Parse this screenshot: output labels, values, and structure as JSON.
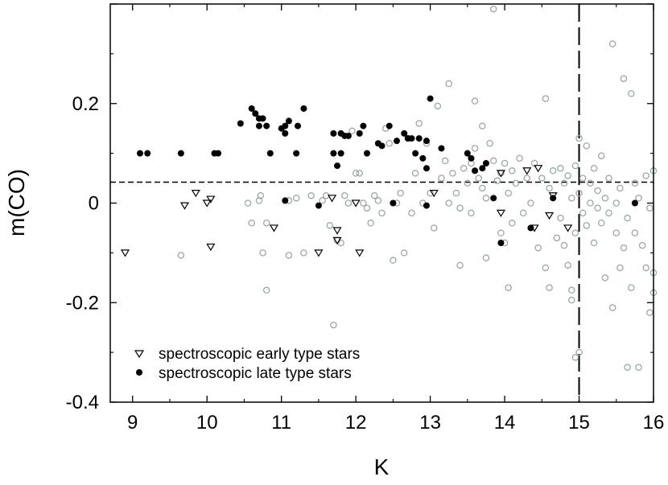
{
  "chart_data": {
    "type": "scatter",
    "xlabel": "K",
    "ylabel": "m(CO)",
    "xlim": [
      8.7,
      16.0
    ],
    "ylim": [
      -0.4,
      0.4
    ],
    "xticks": [
      "9",
      "10",
      "11",
      "12",
      "13",
      "14",
      "15",
      "16"
    ],
    "yticks": [
      "0.2",
      "0",
      "-0.2",
      "-0.4"
    ],
    "grid": false,
    "legend_position": "bottom-left",
    "reference_lines": [
      {
        "orientation": "horizontal",
        "style": "short-dash",
        "value": 0.042
      },
      {
        "orientation": "vertical",
        "style": "long-dash",
        "value": 15.0
      }
    ],
    "series": [
      {
        "name": "spectroscopic early type stars",
        "marker": "open-triangle-down",
        "color": "#000000",
        "points": [
          [
            8.9,
            -0.1
          ],
          [
            9.7,
            -0.005
          ],
          [
            9.85,
            0.02
          ],
          [
            10.0,
            0.0
          ],
          [
            10.05,
            0.008
          ],
          [
            10.05,
            -0.088
          ],
          [
            10.9,
            -0.05
          ],
          [
            11.5,
            -0.1
          ],
          [
            11.68,
            0.01
          ],
          [
            11.75,
            -0.055
          ],
          [
            11.75,
            -0.075
          ],
          [
            12.0,
            0.0
          ],
          [
            12.05,
            -0.1
          ],
          [
            13.05,
            0.02
          ],
          [
            13.95,
            0.06
          ],
          [
            13.95,
            -0.02
          ],
          [
            14.3,
            0.065
          ],
          [
            14.4,
            -0.05
          ],
          [
            14.45,
            0.07
          ],
          [
            14.6,
            -0.025
          ],
          [
            14.65,
            0.015
          ],
          [
            14.85,
            -0.05
          ]
        ]
      },
      {
        "name": "spectroscopic late type stars",
        "marker": "filled-circle",
        "color": "#000000",
        "points": [
          [
            9.1,
            0.1
          ],
          [
            9.2,
            0.1
          ],
          [
            9.65,
            0.1
          ],
          [
            10.1,
            0.1
          ],
          [
            10.15,
            0.1
          ],
          [
            10.45,
            0.16
          ],
          [
            10.6,
            0.19
          ],
          [
            10.65,
            0.18
          ],
          [
            10.7,
            0.155
          ],
          [
            10.7,
            0.17
          ],
          [
            10.75,
            0.17
          ],
          [
            10.8,
            0.155
          ],
          [
            10.85,
            0.1
          ],
          [
            11.0,
            0.15
          ],
          [
            11.05,
            0.14
          ],
          [
            11.05,
            0.155
          ],
          [
            11.1,
            0.165
          ],
          [
            11.2,
            0.1
          ],
          [
            11.22,
            0.155
          ],
          [
            11.3,
            0.19
          ],
          [
            11.05,
            0.005
          ],
          [
            11.5,
            -0.005
          ],
          [
            11.7,
            0.14
          ],
          [
            11.7,
            0.1
          ],
          [
            11.75,
            0.075
          ],
          [
            11.8,
            0.1
          ],
          [
            11.8,
            0.14
          ],
          [
            11.85,
            0.135
          ],
          [
            11.9,
            0.135
          ],
          [
            12.05,
            0.14
          ],
          [
            12.1,
            0.155
          ],
          [
            12.15,
            0.1
          ],
          [
            12.3,
            0.12
          ],
          [
            12.35,
            0.115
          ],
          [
            12.45,
            0.155
          ],
          [
            12.5,
            0.0
          ],
          [
            12.55,
            0.125
          ],
          [
            12.65,
            0.14
          ],
          [
            12.7,
            0.13
          ],
          [
            12.75,
            0.13
          ],
          [
            12.8,
            0.1
          ],
          [
            12.85,
            0.13
          ],
          [
            12.9,
            0.09
          ],
          [
            12.95,
            0.125
          ],
          [
            13.0,
            0.21
          ],
          [
            12.95,
            0.07
          ],
          [
            12.95,
            -0.005
          ],
          [
            13.15,
            0.11
          ],
          [
            13.5,
            0.1
          ],
          [
            13.55,
            0.09
          ],
          [
            13.6,
            0.065
          ],
          [
            13.7,
            0.07
          ],
          [
            13.75,
            0.08
          ],
          [
            13.85,
            0.01
          ],
          [
            13.95,
            -0.08
          ],
          [
            14.35,
            -0.05
          ],
          [
            14.65,
            0.01
          ],
          [
            15.75,
            0.0
          ]
        ]
      },
      {
        "name": "",
        "marker": "open-circle",
        "color": "#9aa8a6",
        "points": [
          [
            9.65,
            -0.105
          ],
          [
            10.55,
            0.0
          ],
          [
            10.6,
            -0.04
          ],
          [
            10.7,
            0.005
          ],
          [
            10.72,
            0.015
          ],
          [
            10.75,
            -0.1
          ],
          [
            10.8,
            -0.04
          ],
          [
            10.8,
            -0.175
          ],
          [
            11.1,
            0.005
          ],
          [
            11.1,
            -0.105
          ],
          [
            11.2,
            0.01
          ],
          [
            11.3,
            -0.1
          ],
          [
            11.4,
            0.015
          ],
          [
            11.55,
            0.005
          ],
          [
            11.6,
            0.015
          ],
          [
            11.65,
            -0.045
          ],
          [
            11.7,
            -0.245
          ],
          [
            11.75,
            -0.075
          ],
          [
            11.8,
            -0.08
          ],
          [
            11.85,
            0.015
          ],
          [
            11.9,
            0.0
          ],
          [
            11.95,
            0.145
          ],
          [
            12.0,
            0.06
          ],
          [
            12.05,
            0.06
          ],
          [
            12.1,
            0.0
          ],
          [
            12.15,
            -0.01
          ],
          [
            12.2,
            -0.04
          ],
          [
            12.25,
            0.015
          ],
          [
            12.3,
            0.005
          ],
          [
            12.35,
            -0.02
          ],
          [
            12.4,
            0.15
          ],
          [
            12.45,
            0.12
          ],
          [
            12.5,
            -0.115
          ],
          [
            12.55,
            0.0
          ],
          [
            12.6,
            0.02
          ],
          [
            12.65,
            -0.1
          ],
          [
            12.7,
            0.13
          ],
          [
            12.75,
            -0.02
          ],
          [
            12.8,
            0.06
          ],
          [
            12.85,
            0.16
          ],
          [
            12.9,
            0.0
          ],
          [
            12.95,
            0.12
          ],
          [
            13.0,
            0.02
          ],
          [
            13.05,
            -0.05
          ],
          [
            13.1,
            0.195
          ],
          [
            13.15,
            0.05
          ],
          [
            13.2,
            0.085
          ],
          [
            13.25,
            0.0
          ],
          [
            13.25,
            0.24
          ],
          [
            13.3,
            0.06
          ],
          [
            13.35,
            0.02
          ],
          [
            13.4,
            -0.01
          ],
          [
            13.4,
            -0.125
          ],
          [
            13.45,
            0.07
          ],
          [
            13.5,
            0.04
          ],
          [
            13.55,
            -0.02
          ],
          [
            13.55,
            0.08
          ],
          [
            13.6,
            0.205
          ],
          [
            13.6,
            0.11
          ],
          [
            13.65,
            0.05
          ],
          [
            13.7,
            0.155
          ],
          [
            13.7,
            0.03
          ],
          [
            13.75,
            0.01
          ],
          [
            13.75,
            -0.11
          ],
          [
            13.8,
            0.12
          ],
          [
            13.85,
            0.085
          ],
          [
            13.85,
            0.39
          ],
          [
            13.9,
            0.045
          ],
          [
            13.95,
            0.06
          ],
          [
            13.95,
            -0.06
          ],
          [
            14.0,
            0.08
          ],
          [
            14.0,
            -0.08
          ],
          [
            14.05,
            0.02
          ],
          [
            14.05,
            -0.17
          ],
          [
            14.1,
            0.065
          ],
          [
            14.1,
            -0.04
          ],
          [
            14.15,
            0.04
          ],
          [
            14.2,
            0.09
          ],
          [
            14.25,
            -0.02
          ],
          [
            14.3,
            0.05
          ],
          [
            14.35,
            0.0
          ],
          [
            14.4,
            0.08
          ],
          [
            14.45,
            -0.09
          ],
          [
            14.5,
            0.05
          ],
          [
            14.55,
            0.21
          ],
          [
            14.55,
            -0.13
          ],
          [
            14.6,
            0.03
          ],
          [
            14.6,
            -0.17
          ],
          [
            14.65,
            0.065
          ],
          [
            14.7,
            -0.07
          ],
          [
            14.75,
            -0.03
          ],
          [
            14.75,
            0.07
          ],
          [
            14.8,
            0.04
          ],
          [
            14.8,
            -0.085
          ],
          [
            14.85,
            0.055
          ],
          [
            14.85,
            -0.125
          ],
          [
            14.9,
            0.01
          ],
          [
            14.9,
            -0.175
          ],
          [
            14.9,
            -0.195
          ],
          [
            14.95,
            -0.31
          ],
          [
            14.95,
            0.075
          ],
          [
            14.95,
            -0.06
          ],
          [
            15.0,
            -0.3
          ],
          [
            15.0,
            0.13
          ],
          [
            15.0,
            0.02
          ],
          [
            15.05,
            0.05
          ],
          [
            15.05,
            -0.02
          ],
          [
            15.1,
            -0.045
          ],
          [
            15.1,
            0.115
          ],
          [
            15.15,
            0.0
          ],
          [
            15.15,
            0.04
          ],
          [
            15.2,
            -0.08
          ],
          [
            15.2,
            0.07
          ],
          [
            15.25,
            -0.01
          ],
          [
            15.25,
            0.025
          ],
          [
            15.3,
            0.095
          ],
          [
            15.3,
            -0.04
          ],
          [
            15.35,
            0.01
          ],
          [
            15.35,
            -0.15
          ],
          [
            15.4,
            0.05
          ],
          [
            15.4,
            -0.02
          ],
          [
            15.45,
            -0.21
          ],
          [
            15.45,
            0.32
          ],
          [
            15.5,
            0.0
          ],
          [
            15.5,
            -0.06
          ],
          [
            15.55,
            0.03
          ],
          [
            15.55,
            -0.13
          ],
          [
            15.6,
            0.25
          ],
          [
            15.6,
            -0.09
          ],
          [
            15.65,
            -0.03
          ],
          [
            15.65,
            -0.33
          ],
          [
            15.7,
            0.22
          ],
          [
            15.7,
            -0.17
          ],
          [
            15.75,
            0.04
          ],
          [
            15.75,
            -0.06
          ],
          [
            15.8,
            -0.33
          ],
          [
            15.8,
            0.01
          ],
          [
            15.85,
            -0.085
          ],
          [
            15.9,
            0.055
          ],
          [
            15.9,
            -0.13
          ],
          [
            15.95,
            -0.01
          ],
          [
            15.95,
            -0.22
          ],
          [
            16.0,
            0.065
          ],
          [
            16.0,
            -0.14
          ],
          [
            16.0,
            -0.18
          ]
        ]
      }
    ]
  }
}
